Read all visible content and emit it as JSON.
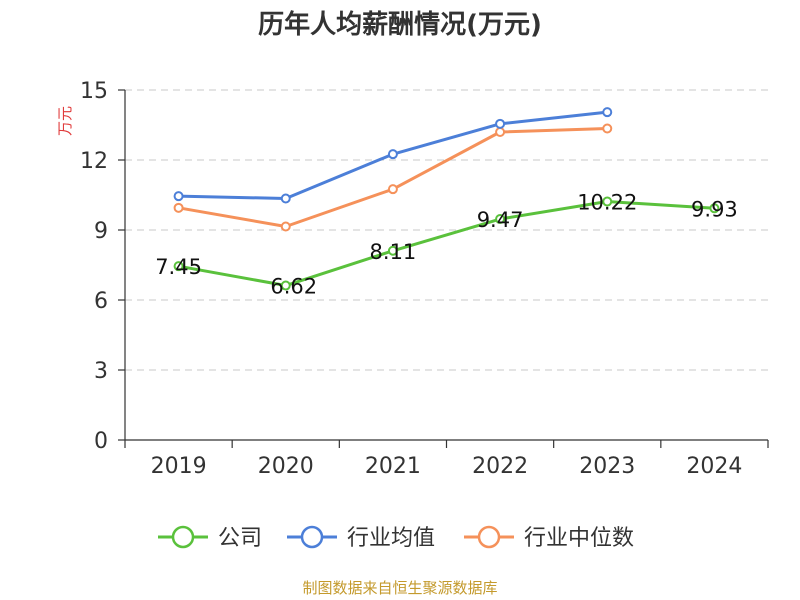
{
  "chart_data": {
    "type": "line",
    "title": "历年人均薪酬情况(万元)",
    "ylabel": "万元",
    "xlabel": "",
    "categories": [
      "2019",
      "2020",
      "2021",
      "2022",
      "2023",
      "2024"
    ],
    "ylim": [
      0,
      15
    ],
    "yticks": [
      0,
      3,
      6,
      9,
      12,
      15
    ],
    "grid": true,
    "legend_position": "bottom",
    "series": [
      {
        "name": "公司",
        "color": "#5ac13c",
        "values": [
          7.45,
          6.62,
          8.11,
          9.47,
          10.22,
          9.93
        ],
        "labels": [
          "7.45",
          "6.62",
          "8.11",
          "9.47",
          "10.22",
          "9.93"
        ]
      },
      {
        "name": "行业均值",
        "color": "#4c7fd8",
        "values": [
          10.45,
          10.35,
          12.25,
          13.55,
          14.05,
          null
        ]
      },
      {
        "name": "行业中位数",
        "color": "#f5915a",
        "values": [
          9.95,
          9.15,
          10.75,
          13.2,
          13.35,
          null
        ]
      }
    ]
  },
  "source": "制图数据来自恒生聚源数据库"
}
